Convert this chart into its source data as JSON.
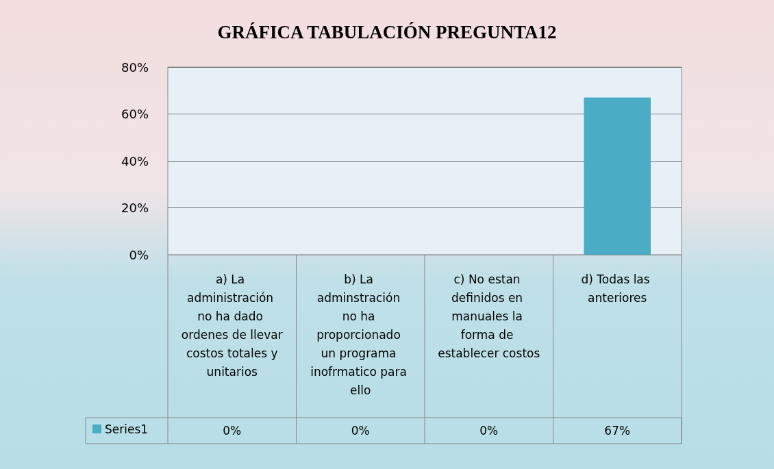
{
  "chart_data": {
    "type": "bar",
    "title": "GRÁFICA TABULACIÓN PREGUNTA12",
    "categories": [
      "a) La administración no ha dado ordenes de llevar costos totales y unitarios",
      "b) La adminstración no ha proporcionado un programa inofrmatico para ello",
      "c) No estan definidos en manuales la forma de establecer costos",
      "d) Todas las anteriores"
    ],
    "series": [
      {
        "name": "Series1",
        "color": "#4bacc6",
        "values": [
          0,
          0,
          0,
          67
        ],
        "value_labels": [
          "0%",
          "0%",
          "0%",
          "67%"
        ]
      }
    ],
    "ylim": [
      0,
      80
    ],
    "yticks": [
      {
        "value": 0,
        "label": "0%"
      },
      {
        "value": 20,
        "label": "20%"
      },
      {
        "value": 40,
        "label": "40%"
      },
      {
        "value": 60,
        "label": "60%"
      },
      {
        "value": 80,
        "label": "80%"
      }
    ],
    "grid": "y",
    "legend": "bottom left"
  }
}
